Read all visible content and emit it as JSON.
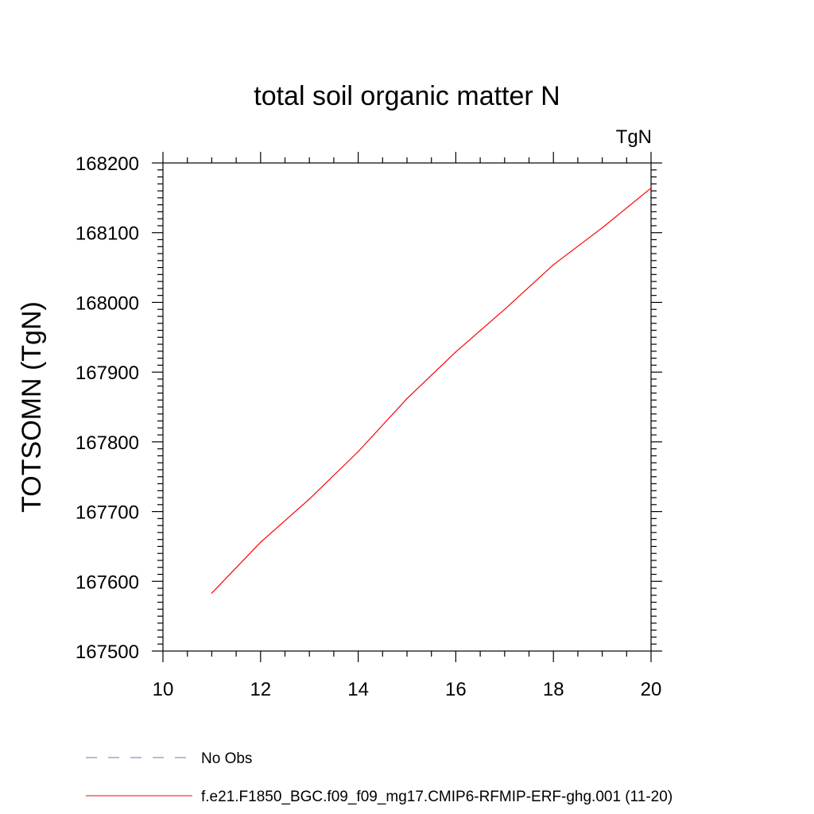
{
  "chart_data": {
    "type": "line",
    "title": "total soil organic matter N",
    "units_label": "TgN",
    "ylabel": "TOTSOMN  (TgN)",
    "xlabel": "",
    "xlim": [
      10,
      20
    ],
    "ylim": [
      167500,
      168200
    ],
    "x_ticks": [
      10,
      12,
      14,
      16,
      18,
      20
    ],
    "x_tick_labels": [
      "10",
      "12",
      "14",
      "16",
      "18",
      "20"
    ],
    "y_ticks": [
      167500,
      167600,
      167700,
      167800,
      167900,
      168000,
      168100,
      168200
    ],
    "y_tick_labels": [
      "167500",
      "167600",
      "167700",
      "167800",
      "167900",
      "168000",
      "168100",
      "168200"
    ],
    "grid": false,
    "series": [
      {
        "name": "f.e21.F1850_BGC.f09_f09_mg17.CMIP6-RFMIP-ERF-ghg.001 (11-20)",
        "color": "#ff0000",
        "x": [
          11,
          12,
          13,
          14,
          15,
          16,
          17,
          18,
          19,
          20
        ],
        "y": [
          167583,
          167656,
          167718,
          167786,
          167862,
          167929,
          167990,
          168054,
          168107,
          168164
        ]
      }
    ],
    "legend": {
      "placement": "bottom-left",
      "entries": [
        {
          "label": "No Obs",
          "color": "#7a6fbf",
          "style": "dashed"
        },
        {
          "label": "f.e21.F1850_BGC.f09_f09_mg17.CMIP6-RFMIP-ERF-ghg.001 (11-20)",
          "color": "#ff0000",
          "style": "solid"
        }
      ]
    }
  }
}
